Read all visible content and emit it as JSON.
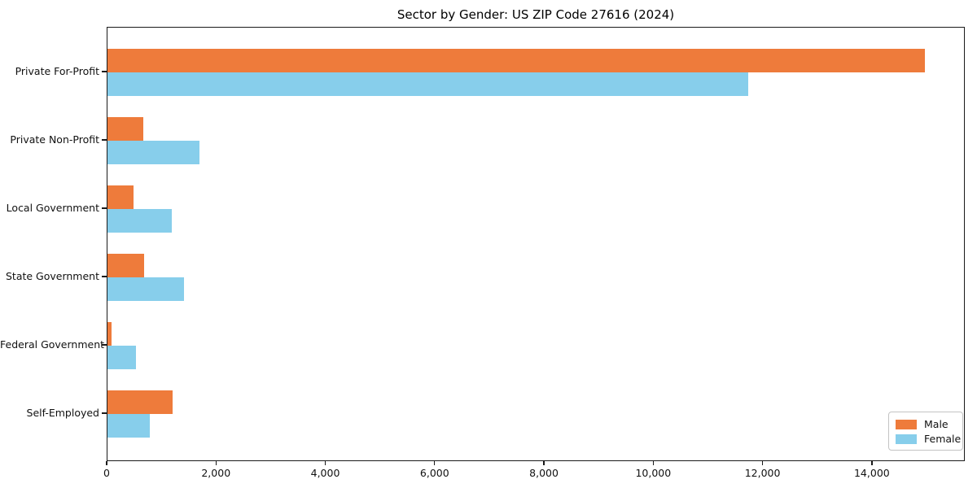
{
  "chart": {
    "title": "Sector by Gender: US ZIP Code 27616 (2024)"
  },
  "legend": {
    "items": [
      {
        "label": "Male",
        "color": "#ee7b3b"
      },
      {
        "label": "Female",
        "color": "#87ceeb"
      }
    ]
  },
  "chart_data": {
    "type": "bar",
    "orientation": "horizontal",
    "title": "Sector by Gender: US ZIP Code 27616 (2024)",
    "categories": [
      "Private For-Profit",
      "Private Non-Profit",
      "Local Government",
      "State Government",
      "Federal Government",
      "Self-Employed"
    ],
    "series": [
      {
        "name": "Male",
        "color": "#ee7b3b",
        "values": [
          14960,
          660,
          480,
          670,
          80,
          1190
        ]
      },
      {
        "name": "Female",
        "color": "#87ceeb",
        "values": [
          11720,
          1690,
          1180,
          1400,
          520,
          780
        ]
      }
    ],
    "xlabel": "",
    "ylabel": "",
    "xlim": [
      0,
      15700
    ],
    "xticks": [
      0,
      2000,
      4000,
      6000,
      8000,
      10000,
      12000,
      14000
    ],
    "xtick_labels": [
      "0",
      "2,000",
      "4,000",
      "6,000",
      "8,000",
      "10,000",
      "12,000",
      "14,000"
    ],
    "grid": false,
    "legend_position": "lower right"
  }
}
